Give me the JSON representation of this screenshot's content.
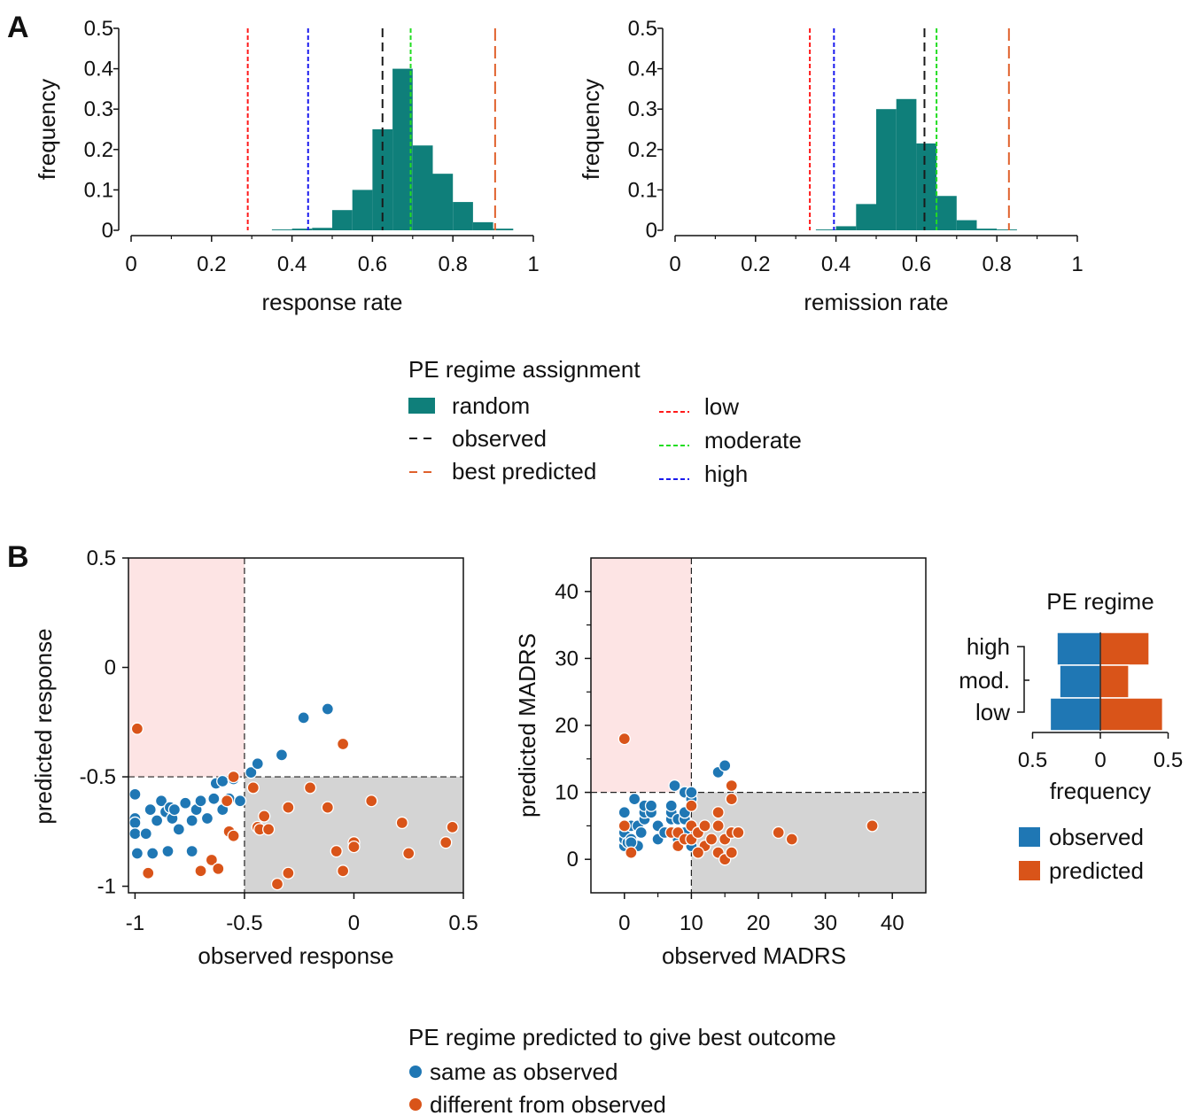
{
  "panels": {
    "a_letter": "A",
    "b_letter": "B"
  },
  "colors": {
    "hist": "#0f7f7a",
    "observed": "#1a1a1a",
    "best": "#e0612c",
    "low": "#ff1a1a",
    "moderate": "#22dd22",
    "high": "#1a1aee",
    "blue": "#1f77b4",
    "orange": "#d95419",
    "pink": "#fde4e4",
    "grey": "#d4d4d4"
  },
  "legend_a": {
    "title": "PE regime assignment",
    "random": "random",
    "observed": "observed",
    "best": "best predicted",
    "low": "low",
    "moderate": "moderate",
    "high": "high"
  },
  "legend_b": {
    "title": "PE regime predicted to give best outcome",
    "same": "same as observed",
    "different": "different from observed"
  },
  "chart_data": [
    {
      "type": "bar",
      "id": "response-hist",
      "xlabel": "response rate",
      "ylabel": "frequency",
      "xlim": [
        0,
        1
      ],
      "ylim": [
        0,
        0.5
      ],
      "xticks": [
        "0",
        "0.2",
        "0.4",
        "0.6",
        "0.8",
        "1"
      ],
      "yticks": [
        "0",
        "0.1",
        "0.2",
        "0.3",
        "0.4",
        "0.5"
      ],
      "bin_edges": [
        0.35,
        0.4,
        0.45,
        0.5,
        0.55,
        0.6,
        0.65,
        0.7,
        0.75,
        0.8,
        0.85,
        0.9,
        0.95
      ],
      "values": [
        0.002,
        0.004,
        0.006,
        0.05,
        0.1,
        0.25,
        0.4,
        0.21,
        0.14,
        0.07,
        0.02,
        0.004
      ],
      "vlines": {
        "low": 0.29,
        "high": 0.44,
        "observed": 0.625,
        "moderate": 0.695,
        "best": 0.905
      }
    },
    {
      "type": "bar",
      "id": "remission-hist",
      "xlabel": "remission rate",
      "ylabel": "frequency",
      "xlim": [
        0,
        1
      ],
      "ylim": [
        0,
        0.5
      ],
      "xticks": [
        "0",
        "0.2",
        "0.4",
        "0.6",
        "0.8",
        "1"
      ],
      "yticks": [
        "0",
        "0.1",
        "0.2",
        "0.3",
        "0.4",
        "0.5"
      ],
      "bin_edges": [
        0.35,
        0.4,
        0.45,
        0.5,
        0.55,
        0.6,
        0.65,
        0.7,
        0.75,
        0.8,
        0.85
      ],
      "values": [
        0.002,
        0.01,
        0.065,
        0.3,
        0.325,
        0.215,
        0.085,
        0.025,
        0.004,
        0.002
      ],
      "vlines": {
        "low": 0.335,
        "high": 0.395,
        "observed": 0.62,
        "moderate": 0.65,
        "best": 0.83
      }
    },
    {
      "type": "scatter",
      "id": "response-scatter",
      "xlabel": "observed response",
      "ylabel": "predicted response",
      "xlim": [
        -1.03,
        0.5
      ],
      "ylim": [
        -1.03,
        0.5
      ],
      "xticks": [
        "-1",
        "-0.5",
        "0",
        "0.5"
      ],
      "yticks": [
        "-1",
        "-0.5",
        "0",
        "0.5"
      ],
      "threshold": -0.5,
      "series": [
        {
          "group": "same",
          "points": [
            [
              -1,
              -0.58
            ],
            [
              -1,
              -0.69
            ],
            [
              -1,
              -0.71
            ],
            [
              -1,
              -0.76
            ],
            [
              -0.99,
              -0.85
            ],
            [
              -0.95,
              -0.76
            ],
            [
              -0.93,
              -0.65
            ],
            [
              -0.9,
              -0.7
            ],
            [
              -0.88,
              -0.61
            ],
            [
              -0.86,
              -0.66
            ],
            [
              -0.84,
              -0.64
            ],
            [
              -0.83,
              -0.69
            ],
            [
              -0.82,
              -0.65
            ],
            [
              -0.8,
              -0.74
            ],
            [
              -0.77,
              -0.62
            ],
            [
              -0.74,
              -0.7
            ],
            [
              -0.72,
              -0.65
            ],
            [
              -0.7,
              -0.61
            ],
            [
              -0.67,
              -0.69
            ],
            [
              -0.64,
              -0.6
            ],
            [
              -0.63,
              -0.53
            ],
            [
              -0.6,
              -0.52
            ],
            [
              -0.6,
              -0.65
            ],
            [
              -0.57,
              -0.6
            ],
            [
              -0.55,
              -0.51
            ],
            [
              -0.52,
              -0.61
            ],
            [
              -0.47,
              -0.48
            ],
            [
              -0.44,
              -0.44
            ],
            [
              -0.33,
              -0.4
            ],
            [
              -0.23,
              -0.23
            ],
            [
              -0.12,
              -0.19
            ],
            [
              -0.85,
              -0.84
            ],
            [
              -0.92,
              -0.85
            ],
            [
              -0.74,
              -0.84
            ]
          ]
        },
        {
          "group": "different",
          "points": [
            [
              -0.99,
              -0.28
            ],
            [
              -0.94,
              -0.94
            ],
            [
              -0.7,
              -0.93
            ],
            [
              -0.65,
              -0.88
            ],
            [
              -0.62,
              -0.92
            ],
            [
              -0.57,
              -0.75
            ],
            [
              -0.55,
              -0.77
            ],
            [
              -0.55,
              -0.5
            ],
            [
              -0.46,
              -0.55
            ],
            [
              -0.44,
              -0.73
            ],
            [
              -0.43,
              -0.74
            ],
            [
              -0.41,
              -0.68
            ],
            [
              -0.39,
              -0.74
            ],
            [
              -0.35,
              -0.99
            ],
            [
              -0.3,
              -0.94
            ],
            [
              -0.3,
              -0.64
            ],
            [
              -0.2,
              -0.55
            ],
            [
              -0.12,
              -0.64
            ],
            [
              -0.08,
              -0.84
            ],
            [
              -0.05,
              -0.93
            ],
            [
              -0.05,
              -0.35
            ],
            [
              0,
              -0.8
            ],
            [
              0,
              -0.82
            ],
            [
              0.08,
              -0.61
            ],
            [
              0.22,
              -0.71
            ],
            [
              0.25,
              -0.85
            ],
            [
              0.42,
              -0.8
            ],
            [
              0.45,
              -0.73
            ],
            [
              -0.58,
              -0.61
            ]
          ]
        }
      ]
    },
    {
      "type": "scatter",
      "id": "madrs-scatter",
      "xlabel": "observed MADRS",
      "ylabel": "predicted MADRS",
      "xlim": [
        -5,
        45
      ],
      "ylim": [
        -5,
        45
      ],
      "xticks": [
        "0",
        "10",
        "20",
        "30",
        "40"
      ],
      "yticks": [
        "0",
        "10",
        "20",
        "30",
        "40"
      ],
      "threshold": 10,
      "series": [
        {
          "group": "same",
          "points": [
            [
              0,
              2
            ],
            [
              0,
              3
            ],
            [
              0,
              4
            ],
            [
              0,
              5
            ],
            [
              0,
              7
            ],
            [
              0.5,
              2.5
            ],
            [
              1,
              3
            ],
            [
              1,
              5
            ],
            [
              1.5,
              9
            ],
            [
              2,
              5
            ],
            [
              2,
              2
            ],
            [
              3,
              6
            ],
            [
              3,
              7
            ],
            [
              3,
              8
            ],
            [
              4,
              7
            ],
            [
              4,
              8
            ],
            [
              5,
              5
            ],
            [
              5,
              3
            ],
            [
              6,
              4
            ],
            [
              7,
              6
            ],
            [
              7,
              7
            ],
            [
              7,
              8
            ],
            [
              7.5,
              11
            ],
            [
              8,
              6
            ],
            [
              8,
              3
            ],
            [
              9,
              4
            ],
            [
              9,
              6
            ],
            [
              9,
              7
            ],
            [
              9,
              10
            ],
            [
              10,
              9
            ],
            [
              10,
              10
            ],
            [
              10,
              2
            ],
            [
              14,
              13
            ],
            [
              15,
              14
            ],
            [
              1,
              2.5
            ],
            [
              2.5,
              4
            ]
          ]
        },
        {
          "group": "different",
          "points": [
            [
              0,
              18
            ],
            [
              0,
              5
            ],
            [
              1,
              1
            ],
            [
              7,
              4
            ],
            [
              8,
              2
            ],
            [
              8,
              4
            ],
            [
              9,
              3
            ],
            [
              10,
              3
            ],
            [
              10,
              5
            ],
            [
              10,
              8
            ],
            [
              11,
              4
            ],
            [
              12,
              5
            ],
            [
              12,
              2
            ],
            [
              13,
              3
            ],
            [
              14,
              7
            ],
            [
              14,
              5
            ],
            [
              14,
              1
            ],
            [
              15,
              0
            ],
            [
              15,
              3
            ],
            [
              16,
              1
            ],
            [
              16,
              4
            ],
            [
              16,
              9
            ],
            [
              16,
              11
            ],
            [
              17,
              4
            ],
            [
              23,
              4
            ],
            [
              25,
              3
            ],
            [
              37,
              5
            ],
            [
              11,
              1
            ]
          ]
        }
      ]
    },
    {
      "type": "bar",
      "id": "pe-regime-bars",
      "title": "PE regime",
      "xlabel": "frequency",
      "categories": [
        "high",
        "mod.",
        "low"
      ],
      "xticks": [
        "0.5",
        "0",
        "0.5"
      ],
      "series": [
        {
          "name": "observed",
          "values": [
            0.32,
            0.3,
            0.37
          ]
        },
        {
          "name": "predicted",
          "values": [
            0.36,
            0.21,
            0.46
          ]
        }
      ]
    }
  ]
}
